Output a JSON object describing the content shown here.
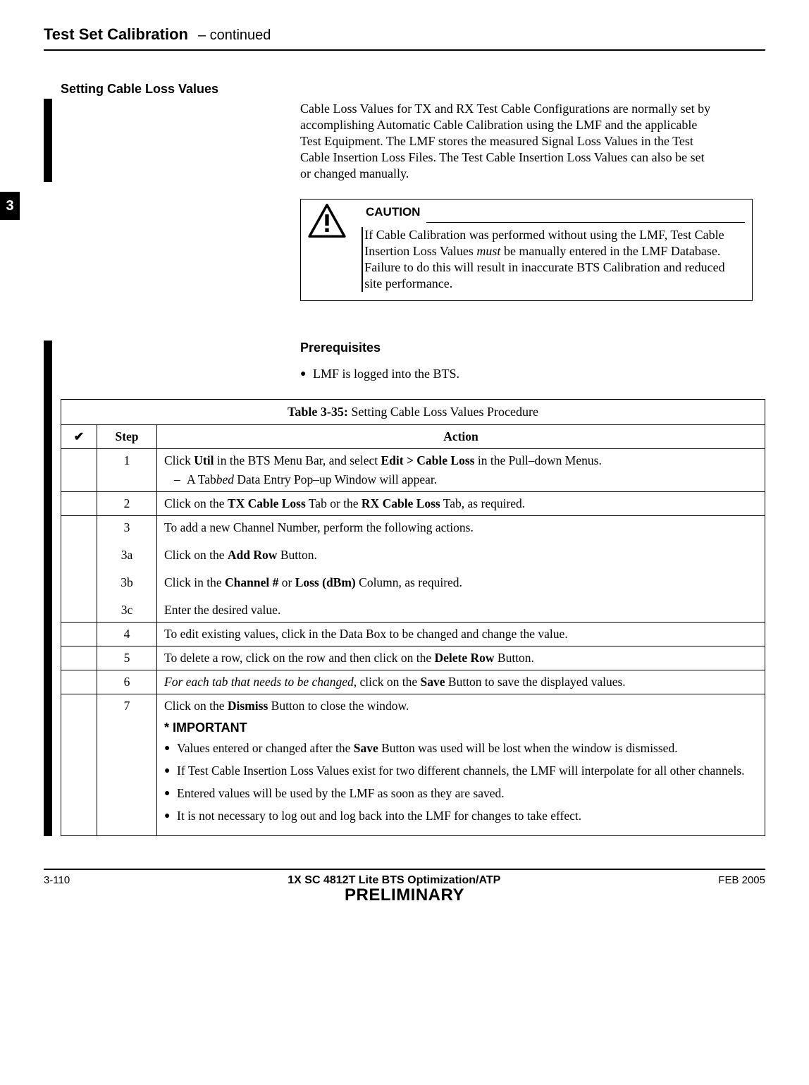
{
  "header": {
    "title": "Test Set Calibration",
    "subtitle": "– continued"
  },
  "chapter_tab": "3",
  "section": {
    "heading": "Setting Cable Loss Values",
    "intro": "Cable Loss Values for TX and RX Test Cable Configurations are normally set by accomplishing Automatic Cable Calibration using the LMF and the applicable Test Equipment. The LMF stores the measured Signal Loss Values in the Test Cable Insertion Loss Files. The Test Cable Insertion Loss Values can also be set or changed manually."
  },
  "caution": {
    "label": "CAUTION",
    "text_pre": "If Cable Calibration was performed without using the LMF, Test Cable Insertion Loss Values ",
    "text_em": "must",
    "text_post": " be manually entered in the LMF Database. Failure to do this will result in inaccurate BTS Calibration and reduced site performance."
  },
  "prereq": {
    "heading": "Prerequisites",
    "items": [
      "LMF is logged into the BTS."
    ]
  },
  "table": {
    "title_prefix": "Table 3-35:",
    "title_rest": " Setting Cable Loss Values Procedure",
    "check_mark": "✔",
    "col_step": "Step",
    "col_action": "Action",
    "rows": [
      {
        "step": "1",
        "action_html": "Click <b>Util</b> in the BTS Menu Bar, and select <b>Edit &gt; Cable Loss</b> in the Pull–down Menus.",
        "dash_item": "A Tab<i>bed</i> Data Entry Pop–up Window will appear."
      },
      {
        "step": "2",
        "action_html": "Click on the <b>TX Cable Loss</b> Tab or the <b>RX Cable Loss</b> Tab, as required."
      },
      {
        "step": "3",
        "action_html": "To add a new Channel Number, perform the following actions.",
        "group_first": true
      },
      {
        "step": "3a",
        "action_html": "Click on the <b>Add Row</b> Button.",
        "group_mid": true
      },
      {
        "step": "3b",
        "action_html": "Click in the <b>Channel #</b> or <b>Loss (dBm)</b> Column, as required.",
        "group_mid": true
      },
      {
        "step": "3c",
        "action_html": "Enter the desired value.",
        "group_last": true
      },
      {
        "step": "4",
        "action_html": "To edit existing values, click in the Data Box to be changed and change the value."
      },
      {
        "step": "5",
        "action_html": "To delete a row, click on the row and then click on the <b>Delete Row</b> Button."
      },
      {
        "step": "6",
        "action_html": "<i>For each tab that needs to be changed</i>, click on the <b>Save</b> Button to save the displayed values."
      },
      {
        "step": "7",
        "action_html": "Click on the <b>Dismiss</b> Button to close the window.",
        "important_heading": "* IMPORTANT",
        "bullets": [
          "Values entered or changed after the <b>Save</b> Button was used will be lost when the window is dismissed.",
          "If Test Cable Insertion Loss Values exist for two different channels, the LMF will interpolate for all other channels.",
          "Entered values will be used by the LMF as soon as they are saved.",
          "It is not necessary to log out and log back into the LMF for changes to take effect."
        ]
      }
    ]
  },
  "footer": {
    "page": "3-110",
    "center": "1X SC 4812T Lite BTS Optimization/ATP",
    "date": "FEB 2005",
    "preliminary": "PRELIMINARY"
  },
  "colors": {
    "text": "#000000",
    "background": "#ffffff",
    "rule": "#000000"
  }
}
